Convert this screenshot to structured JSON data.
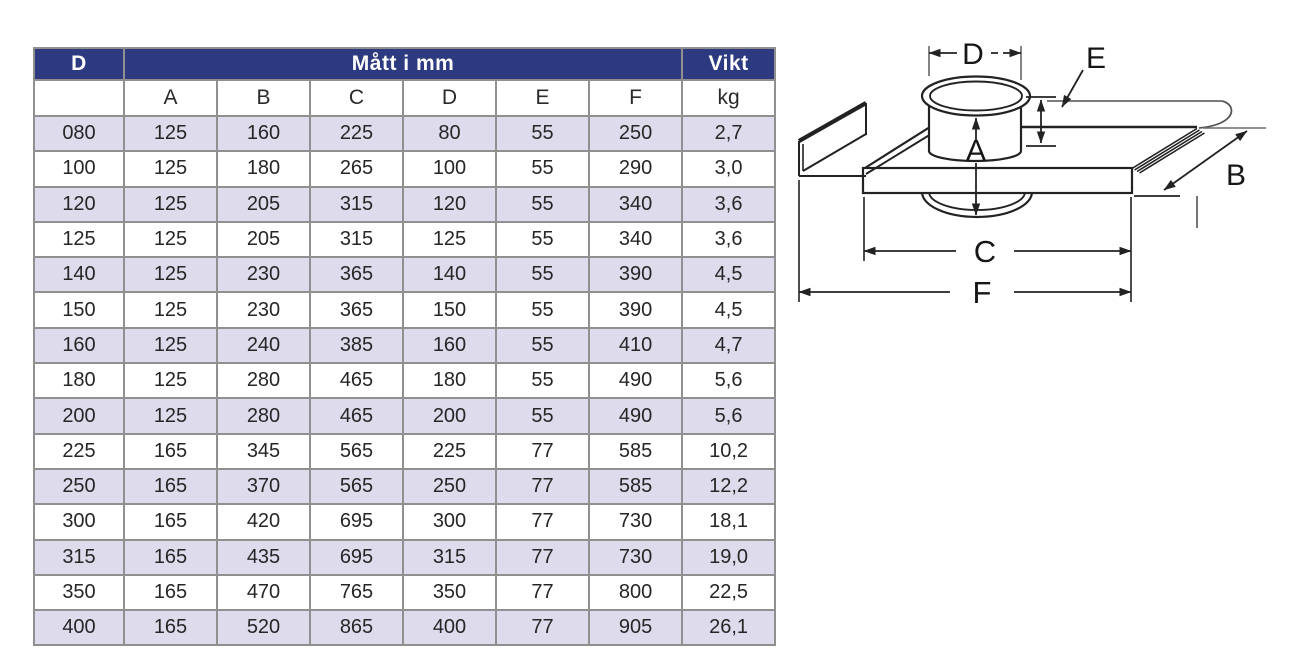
{
  "table": {
    "header": {
      "diameter_col": "D",
      "dimensions_span": "Mått i mm",
      "weight_col": "Vikt"
    },
    "subheader": [
      "",
      "A",
      "B",
      "C",
      "D",
      "E",
      "F",
      "kg"
    ],
    "rows": [
      [
        "080",
        "125",
        "160",
        "225",
        "80",
        "55",
        "250",
        "2,7"
      ],
      [
        "100",
        "125",
        "180",
        "265",
        "100",
        "55",
        "290",
        "3,0"
      ],
      [
        "120",
        "125",
        "205",
        "315",
        "120",
        "55",
        "340",
        "3,6"
      ],
      [
        "125",
        "125",
        "205",
        "315",
        "125",
        "55",
        "340",
        "3,6"
      ],
      [
        "140",
        "125",
        "230",
        "365",
        "140",
        "55",
        "390",
        "4,5"
      ],
      [
        "150",
        "125",
        "230",
        "365",
        "150",
        "55",
        "390",
        "4,5"
      ],
      [
        "160",
        "125",
        "240",
        "385",
        "160",
        "55",
        "410",
        "4,7"
      ],
      [
        "180",
        "125",
        "280",
        "465",
        "180",
        "55",
        "490",
        "5,6"
      ],
      [
        "200",
        "125",
        "280",
        "465",
        "200",
        "55",
        "490",
        "5,6"
      ],
      [
        "225",
        "165",
        "345",
        "565",
        "225",
        "77",
        "585",
        "10,2"
      ],
      [
        "250",
        "165",
        "370",
        "565",
        "250",
        "77",
        "585",
        "12,2"
      ],
      [
        "300",
        "165",
        "420",
        "695",
        "300",
        "77",
        "730",
        "18,1"
      ],
      [
        "315",
        "165",
        "435",
        "695",
        "315",
        "77",
        "730",
        "19,0"
      ],
      [
        "350",
        "165",
        "470",
        "765",
        "350",
        "77",
        "800",
        "22,5"
      ],
      [
        "400",
        "165",
        "520",
        "865",
        "400",
        "77",
        "905",
        "26,1"
      ]
    ]
  },
  "diagram": {
    "labels": {
      "a": "A",
      "b": "B",
      "c": "C",
      "d": "D",
      "e": "E",
      "f": "F"
    }
  },
  "colors": {
    "header_bg": "#2d3a80",
    "header_text": "#ffffff",
    "row_alt": "#dddbec",
    "table_border": "#909090",
    "drawing_line": "#222222"
  }
}
